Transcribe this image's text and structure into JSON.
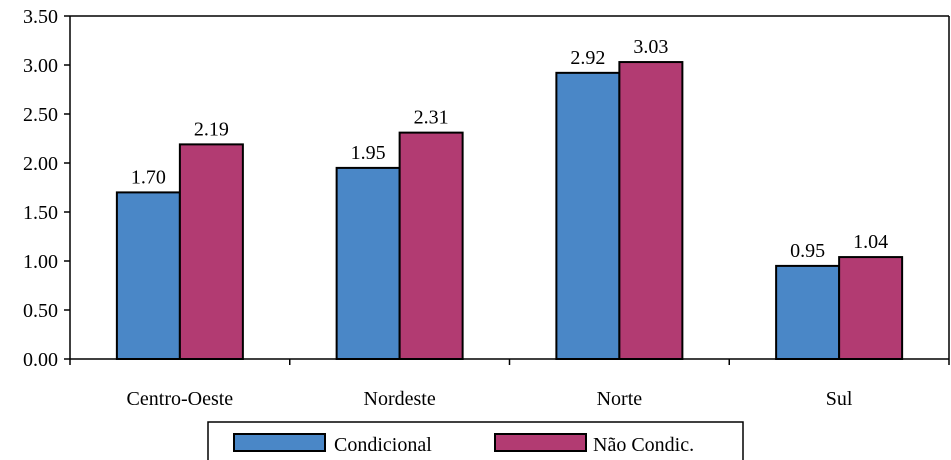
{
  "chart_data": {
    "type": "bar",
    "title": "",
    "xlabel": "",
    "ylabel": "",
    "categories": [
      "Centro-Oeste",
      "Nordeste",
      "Norte",
      "Sul"
    ],
    "series": [
      {
        "name": "Condicional",
        "color": "#4a87c7",
        "values": [
          1.7,
          1.95,
          2.92,
          0.95
        ],
        "labels": [
          "1.70",
          "1.95",
          "2.92",
          "0.95"
        ]
      },
      {
        "name": "Não Condic.",
        "color": "#b23b72",
        "values": [
          2.19,
          2.31,
          3.03,
          1.04
        ],
        "labels": [
          "2.19",
          "2.31",
          "3.03",
          "1.04"
        ]
      }
    ],
    "ylim": [
      0,
      3.5
    ],
    "yticks": [
      "0.00",
      "0.50",
      "1.00",
      "1.50",
      "2.00",
      "2.50",
      "3.00",
      "3.50"
    ],
    "grid": false,
    "legend_position": "bottom"
  }
}
